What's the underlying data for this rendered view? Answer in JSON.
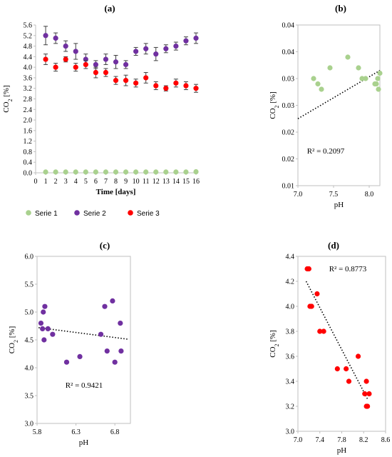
{
  "chart_data": [
    {
      "type": "scatter",
      "panel_label": "(a)",
      "xlabel": "Time [days]",
      "ylabel": "CO2 [%]",
      "ylabel_sub": "2",
      "xlim": [
        0,
        16
      ],
      "ylim": [
        0.0,
        5.6
      ],
      "xticks": [
        "0",
        "1",
        "2",
        "3",
        "4",
        "5",
        "6",
        "7",
        "8",
        "9",
        "10",
        "11",
        "12",
        "13",
        "14",
        "15",
        "16"
      ],
      "yticks": [
        "0.0",
        "0.4",
        "0.8",
        "1.2",
        "1.6",
        "2.0",
        "2.4",
        "2.8",
        "3.2",
        "3.6",
        "4.0",
        "4.4",
        "4.8",
        "5.2",
        "5.6"
      ],
      "legend_position": "bottom",
      "series": [
        {
          "name": "Serie 1",
          "color": "#a9d18e",
          "x": [
            1,
            2,
            3,
            4,
            5,
            6,
            7,
            8,
            9,
            10,
            11,
            12,
            13,
            14,
            15,
            16
          ],
          "y": [
            0.03,
            0.03,
            0.03,
            0.03,
            0.03,
            0.03,
            0.03,
            0.03,
            0.03,
            0.03,
            0.03,
            0.03,
            0.03,
            0.03,
            0.03,
            0.04
          ],
          "err": [
            0.01,
            0.01,
            0.01,
            0.01,
            0.01,
            0.01,
            0.01,
            0.01,
            0.01,
            0.01,
            0.01,
            0.01,
            0.01,
            0.01,
            0.01,
            0.01
          ]
        },
        {
          "name": "Serie 2",
          "color": "#7030a0",
          "x": [
            1,
            2,
            3,
            4,
            5,
            6,
            7,
            8,
            9,
            10,
            11,
            12,
            13,
            14,
            15,
            16
          ],
          "y": [
            5.2,
            5.1,
            4.8,
            4.6,
            4.3,
            4.1,
            4.3,
            4.2,
            4.1,
            4.6,
            4.7,
            4.5,
            4.7,
            4.8,
            5.0,
            5.1
          ],
          "err": [
            0.35,
            0.2,
            0.2,
            0.3,
            0.2,
            0.15,
            0.2,
            0.25,
            0.15,
            0.15,
            0.2,
            0.25,
            0.15,
            0.15,
            0.15,
            0.2
          ]
        },
        {
          "name": "Serie 3",
          "color": "#ff0000",
          "x": [
            1,
            2,
            3,
            4,
            5,
            6,
            7,
            8,
            9,
            10,
            11,
            12,
            13,
            14,
            15,
            16
          ],
          "y": [
            4.3,
            4.0,
            4.3,
            4.0,
            4.1,
            3.8,
            3.8,
            3.5,
            3.5,
            3.4,
            3.6,
            3.3,
            3.2,
            3.4,
            3.3,
            3.2
          ],
          "err": [
            0.2,
            0.15,
            0.1,
            0.15,
            0.15,
            0.2,
            0.15,
            0.15,
            0.2,
            0.15,
            0.2,
            0.15,
            0.1,
            0.15,
            0.15,
            0.15
          ]
        }
      ]
    },
    {
      "type": "scatter",
      "panel_label": "(b)",
      "xlabel": "pH",
      "ylabel": "CO2 [%]",
      "ylabel_sub": "2",
      "xlim": [
        7.0,
        8.15
      ],
      "ylim": [
        0.01,
        0.04
      ],
      "xticks": [
        "7.0",
        "7.5",
        "8.0"
      ],
      "xtick_values": [
        7.0,
        7.5,
        8.0
      ],
      "yticks": [
        "0.01",
        "0.02",
        "0.02",
        "0.03",
        "0.03",
        "0.04",
        "0.04"
      ],
      "ytick_values": [
        0.01,
        0.015,
        0.02,
        0.025,
        0.03,
        0.035,
        0.04
      ],
      "r2_label": "R² = 0.2097",
      "trendline": {
        "x": [
          7.0,
          8.15
        ],
        "y": [
          0.0225,
          0.0315
        ]
      },
      "series": [
        {
          "name": "",
          "color": "#a9d18e",
          "x": [
            7.22,
            7.28,
            7.33,
            7.45,
            7.7,
            7.85,
            7.9,
            7.95,
            8.08,
            8.1,
            8.12,
            8.13,
            8.15
          ],
          "y": [
            0.03,
            0.029,
            0.028,
            0.032,
            0.034,
            0.032,
            0.03,
            0.03,
            0.029,
            0.029,
            0.03,
            0.028,
            0.031
          ]
        }
      ]
    },
    {
      "type": "scatter",
      "panel_label": "(c)",
      "xlabel": "pH",
      "ylabel": "CO2 [%]",
      "ylabel_sub": "2",
      "xlim": [
        5.8,
        7.0
      ],
      "ylim": [
        3.0,
        6.0
      ],
      "xticks": [
        "5.8",
        "6.3",
        "6.8"
      ],
      "xtick_values": [
        5.8,
        6.3,
        6.8
      ],
      "yticks": [
        "3.0",
        "3.5",
        "4.0",
        "4.5",
        "5.0",
        "5.5",
        "6.0"
      ],
      "r2_label": "R² = 0.9421",
      "trendline": {
        "x": [
          5.82,
          6.98
        ],
        "y": [
          4.72,
          4.51
        ]
      },
      "series": [
        {
          "name": "",
          "color": "#7030a0",
          "x": [
            5.85,
            5.87,
            5.88,
            5.89,
            5.9,
            5.94,
            6.0,
            6.18,
            6.35,
            6.62,
            6.67,
            6.7,
            6.77,
            6.8,
            6.87,
            6.88
          ],
          "y": [
            4.8,
            4.7,
            5.0,
            4.5,
            5.1,
            4.7,
            4.6,
            4.1,
            4.2,
            4.6,
            5.1,
            4.3,
            5.2,
            4.1,
            4.8,
            4.3
          ]
        }
      ]
    },
    {
      "type": "scatter",
      "panel_label": "(d)",
      "xlabel": "pH",
      "ylabel": "CO2 [%]",
      "ylabel_sub": "2",
      "xlim": [
        7.0,
        8.6
      ],
      "ylim": [
        3.0,
        4.4
      ],
      "xticks": [
        "7.0",
        "7.4",
        "7.8",
        "8.2",
        "8.6"
      ],
      "xtick_values": [
        7.0,
        7.4,
        7.8,
        8.2,
        8.6
      ],
      "yticks": [
        "3.0",
        "3.2",
        "3.4",
        "3.6",
        "3.8",
        "4.0",
        "4.2",
        "4.4"
      ],
      "r2_label": "R² = 0.8773",
      "trendline": {
        "x": [
          7.15,
          8.28
        ],
        "y": [
          4.2,
          3.25
        ]
      },
      "series": [
        {
          "name": "",
          "color": "#ff0000",
          "x": [
            7.17,
            7.2,
            7.22,
            7.25,
            7.35,
            7.4,
            7.47,
            7.72,
            7.88,
            7.93,
            8.1,
            8.22,
            8.25,
            8.25,
            8.27,
            8.3
          ],
          "y": [
            4.3,
            4.3,
            4.0,
            4.0,
            4.1,
            3.8,
            3.8,
            3.5,
            3.5,
            3.4,
            3.6,
            3.3,
            3.4,
            3.2,
            3.2,
            3.3
          ]
        }
      ]
    }
  ]
}
